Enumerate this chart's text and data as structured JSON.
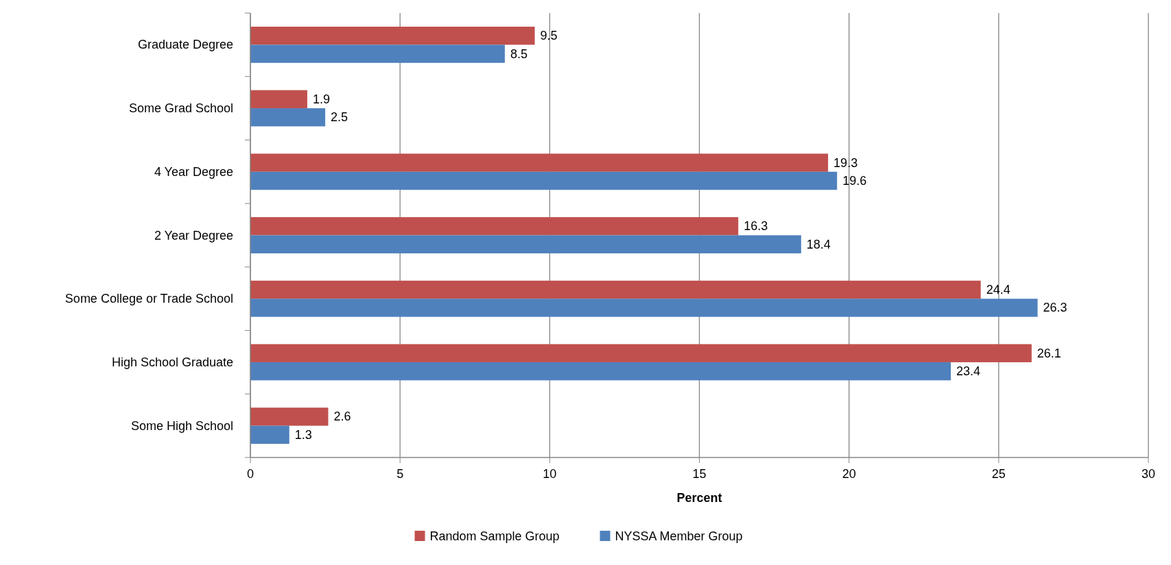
{
  "chart_data": {
    "type": "bar",
    "orientation": "horizontal",
    "xlabel": "Percent",
    "categories": [
      "Graduate Degree",
      "Some Grad School",
      "4 Year Degree",
      "2 Year Degree",
      "Some College or Trade School",
      "High School Graduate",
      "Some High School"
    ],
    "series": [
      {
        "name": "Random Sample Group",
        "color": "#c0504d",
        "values": [
          9.5,
          1.9,
          19.3,
          16.3,
          24.4,
          26.1,
          2.6
        ]
      },
      {
        "name": "NYSSA Member Group",
        "color": "#4f81bd",
        "values": [
          8.5,
          2.5,
          19.6,
          18.4,
          26.3,
          23.4,
          1.3
        ]
      }
    ],
    "xlim": [
      0,
      30
    ],
    "xticks": [
      0,
      5,
      10,
      15,
      20,
      25,
      30
    ],
    "grid": "x",
    "legend": "bottom",
    "data_labels": true
  }
}
